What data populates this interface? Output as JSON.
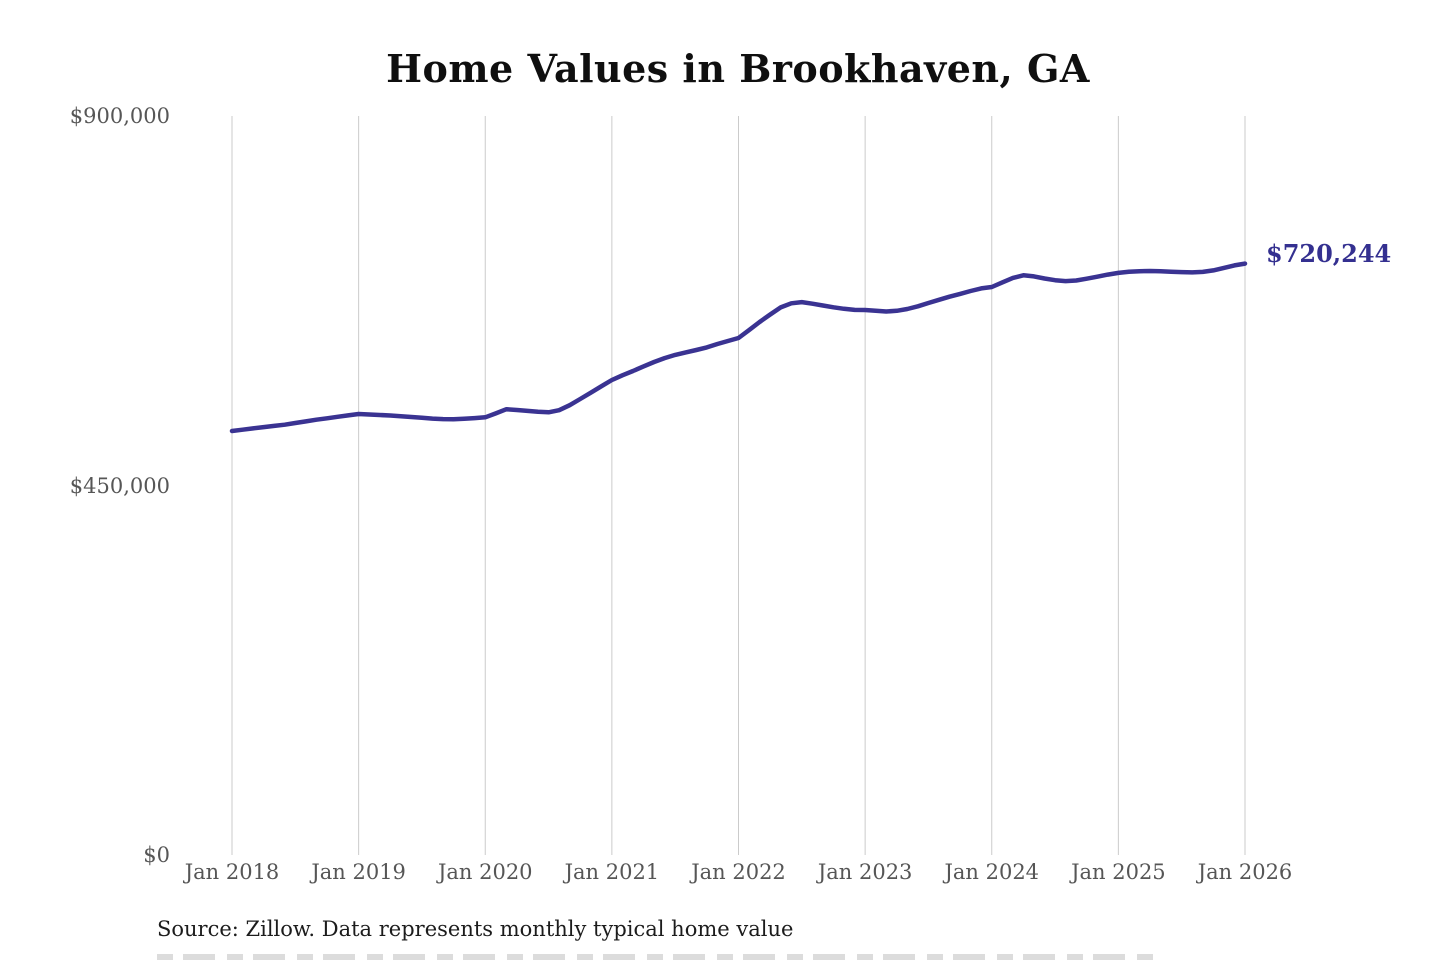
{
  "title": "Home Values in Brookhaven, GA",
  "annotation": {
    "label": "$720,244"
  },
  "source": "Source: Zillow. Data represents monthly typical home value",
  "y_axis": {
    "ticks": [
      "$0",
      "$450,000",
      "$900,000"
    ],
    "tick_values": [
      0,
      450000,
      900000
    ]
  },
  "x_axis": {
    "ticks": [
      "Jan 2018",
      "Jan 2019",
      "Jan 2020",
      "Jan 2021",
      "Jan 2022",
      "Jan 2023",
      "Jan 2024",
      "Jan 2025",
      "Jan 2026"
    ]
  },
  "colors": {
    "line": "#3a3392",
    "grid": "#cbcbcb",
    "title_text": "#0f0f0f",
    "axis_text": "#565656",
    "annotation_text": "#343090",
    "source_text": "#1c1c1c",
    "background": "#ffffff"
  },
  "chart_data": {
    "type": "line",
    "title": "Home Values in Brookhaven, GA",
    "unit": "USD",
    "frequency": "monthly",
    "x_start": "Jan 2018",
    "x_end": "Jan 2026",
    "ylim": [
      0,
      900000
    ],
    "grid": "vertical-only",
    "legend": "none",
    "final_value": 720244,
    "final_value_label": "$720,244",
    "values": [
      516400,
      518000,
      519500,
      521100,
      522600,
      524100,
      526100,
      528100,
      530100,
      531900,
      533700,
      535400,
      537100,
      536500,
      535900,
      535200,
      534300,
      533400,
      532400,
      531500,
      530900,
      530800,
      531400,
      532100,
      533000,
      537800,
      542900,
      542000,
      540800,
      539700,
      539200,
      541700,
      547800,
      555300,
      563000,
      570800,
      578500,
      584200,
      589400,
      595000,
      600400,
      605200,
      609000,
      612100,
      615000,
      618200,
      622300,
      626000,
      629600,
      639300,
      649100,
      658300,
      666900,
      671900,
      673400,
      671400,
      669200,
      667000,
      665200,
      663900,
      663700,
      662900,
      661900,
      662800,
      664900,
      668300,
      672300,
      676200,
      679900,
      683300,
      686900,
      690100,
      691700,
      697300,
      702800,
      706000,
      704600,
      702100,
      700000,
      698900,
      699700,
      701800,
      704300,
      706900,
      708900,
      710200,
      711000,
      711200,
      710900,
      710300,
      709900,
      709500,
      710100,
      712000,
      715000,
      718000,
      720244
    ]
  }
}
